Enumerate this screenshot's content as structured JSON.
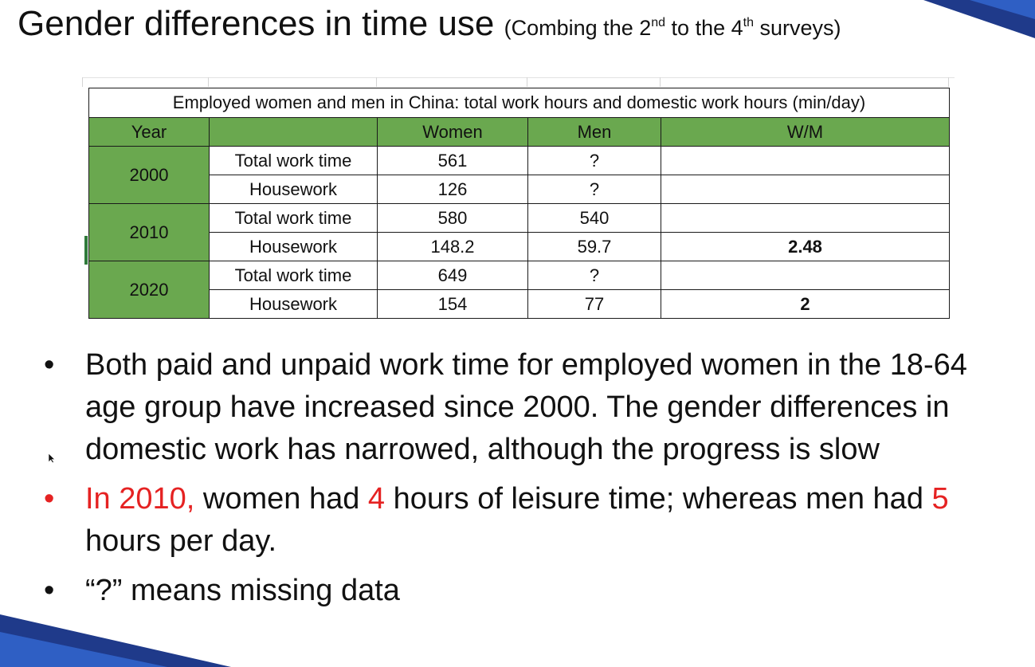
{
  "colors": {
    "table_header_green": "#6aa84f",
    "highlight_red": "#e52222",
    "deco_navy": "#1f3a8a"
  },
  "title": {
    "main": "Gender differences in time use",
    "sub_text_1": "(Combing the 2",
    "sub_sup_1": "nd",
    "sub_text_2": " to the 4",
    "sub_sup_2": "th",
    "sub_text_3": " surveys)"
  },
  "table": {
    "caption": "Employed women and men in China: total work hours and domestic work hours (min/day)",
    "headers": [
      "Year",
      "",
      "Women",
      "Men",
      "W/M"
    ],
    "groups": [
      {
        "year": "2000",
        "rows": [
          {
            "category": "Total work time",
            "women": "561",
            "men": "?",
            "wm": ""
          },
          {
            "category": "Housework",
            "women": "126",
            "men": "?",
            "wm": ""
          }
        ]
      },
      {
        "year": "2010",
        "rows": [
          {
            "category": "Total work time",
            "women": "580",
            "men": "540",
            "wm": ""
          },
          {
            "category": "Housework",
            "women": "148.2",
            "men": "59.7",
            "wm": "2.48"
          }
        ]
      },
      {
        "year": "2020",
        "rows": [
          {
            "category": "Total work time",
            "women": "649",
            "men": "?",
            "wm": ""
          },
          {
            "category": "Housework",
            "women": "154",
            "men": "77",
            "wm": "2"
          }
        ]
      }
    ]
  },
  "bullets": {
    "symbol": "•",
    "b1": "Both paid and unpaid work time for employed women in the 18-64 age group have increased since 2000. The gender differences in domestic work has narrowed, although the progress is slow",
    "b2": {
      "p1": "In 2010,",
      "p2": " women had ",
      "p3": "4",
      "p4": " hours of leisure time; whereas men had ",
      "p5": "5",
      "p6": " hours per day."
    },
    "b3": "“?” means missing data"
  },
  "icons": {
    "cursor": "mouse-pointer-icon"
  }
}
